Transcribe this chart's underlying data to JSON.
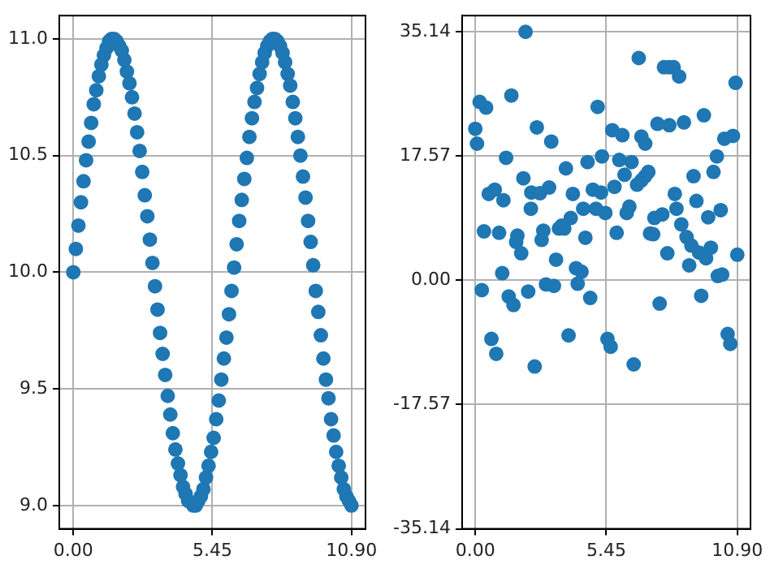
{
  "chart_data": [
    {
      "type": "scatter",
      "marker": "circle",
      "grid": true,
      "xlim": [
        -0.55,
        11.45
      ],
      "ylim": [
        8.9,
        11.1
      ],
      "xticks": [
        {
          "value": 0,
          "label": "0.00"
        },
        {
          "value": 5.45,
          "label": "5.45"
        },
        {
          "value": 10.9,
          "label": "10.90"
        }
      ],
      "yticks": [
        {
          "value": 9,
          "label": "9.0"
        },
        {
          "value": 9.5,
          "label": "9.5"
        },
        {
          "value": 10,
          "label": "10.0"
        },
        {
          "value": 10.5,
          "label": "10.5"
        },
        {
          "value": 11,
          "label": "11.0"
        }
      ],
      "series": [
        {
          "color": "#1f77b4",
          "x": [
            0,
            0.1,
            0.2,
            0.3,
            0.4,
            0.5,
            0.6,
            0.7,
            0.8,
            0.9,
            1,
            1.1,
            1.2,
            1.3,
            1.4,
            1.5,
            1.6,
            1.7,
            1.8,
            1.9,
            2,
            2.1,
            2.2,
            2.3,
            2.4,
            2.5,
            2.6,
            2.7,
            2.8,
            2.9,
            3,
            3.1,
            3.2,
            3.3,
            3.4,
            3.5,
            3.6,
            3.7,
            3.8,
            3.9,
            4,
            4.1,
            4.2,
            4.3,
            4.4,
            4.5,
            4.7,
            4.8,
            4.9,
            5,
            5.1,
            5.2,
            5.3,
            5.4,
            5.5,
            5.6,
            5.7,
            5.8,
            5.9,
            6,
            6.1,
            6.2,
            6.3,
            6.4,
            6.5,
            6.6,
            6.7,
            6.8,
            6.9,
            7,
            7.1,
            7.2,
            7.3,
            7.4,
            7.5,
            7.6,
            7.7,
            7.8,
            7.9,
            8,
            8.1,
            8.2,
            8.3,
            8.4,
            8.5,
            8.6,
            8.7,
            8.8,
            8.9,
            9,
            9.1,
            9.2,
            9.3,
            9.4,
            9.5,
            9.6,
            9.7,
            9.8,
            9.9,
            10,
            10.1,
            10.2,
            10.3,
            10.4,
            10.5,
            10.6,
            10.7,
            10.8,
            10.9
          ],
          "values": [
            10,
            10.1,
            10.2,
            10.3,
            10.39,
            10.48,
            10.56,
            10.64,
            10.72,
            10.78,
            10.84,
            10.89,
            10.93,
            10.96,
            10.99,
            11,
            11,
            10.99,
            10.97,
            10.95,
            10.91,
            10.86,
            10.81,
            10.75,
            10.68,
            10.6,
            10.52,
            10.43,
            10.33,
            10.24,
            10.14,
            10.04,
            9.94,
            9.84,
            9.74,
            9.65,
            9.56,
            9.47,
            9.39,
            9.31,
            9.24,
            9.18,
            9.13,
            9.08,
            9.05,
            9.02,
            9,
            9,
            9.02,
            9.04,
            9.07,
            9.12,
            9.17,
            9.23,
            9.29,
            9.37,
            9.45,
            9.54,
            9.63,
            9.72,
            9.82,
            9.92,
            10.02,
            10.12,
            10.22,
            10.31,
            10.4,
            10.49,
            10.58,
            10.66,
            10.73,
            10.79,
            10.85,
            10.9,
            10.94,
            10.97,
            10.99,
            11,
            11,
            10.99,
            10.97,
            10.94,
            10.9,
            10.85,
            10.8,
            10.73,
            10.66,
            10.58,
            10.5,
            10.41,
            10.32,
            10.22,
            10.13,
            10.03,
            9.92,
            9.83,
            9.73,
            9.63,
            9.54,
            9.46,
            9.37,
            9.3,
            9.23,
            9.17,
            9.12,
            9.07,
            9.04,
            9.02,
            9
          ]
        }
      ]
    },
    {
      "type": "scatter",
      "marker": "circle",
      "grid": true,
      "xlim": [
        -0.55,
        11.45
      ],
      "ylim": [
        -35.14,
        37.4
      ],
      "xticks": [
        {
          "value": 0,
          "label": "0.00"
        },
        {
          "value": 5.45,
          "label": "5.45"
        },
        {
          "value": 10.9,
          "label": "10.90"
        }
      ],
      "yticks": [
        {
          "value": -35.14,
          "label": "-35.14"
        },
        {
          "value": -17.57,
          "label": "-17.57"
        },
        {
          "value": 0,
          "label": "0.00"
        },
        {
          "value": 17.57,
          "label": "17.57"
        },
        {
          "value": 35.14,
          "label": "35.14"
        }
      ],
      "series": [
        {
          "color": "#1f77b4",
          "x": [
            2.09,
            6.8,
            7.85,
            8.07,
            8.25,
            8.48,
            10.83,
            0.18,
            0.45,
            1.5,
            5.09,
            0,
            0.07,
            2.56,
            3.16,
            5.7,
            6.12,
            6.91,
            7.07,
            7.58,
            8.07,
            8.68,
            9.51,
            10.36,
            10.72,
            1.28,
            2,
            3.77,
            4.67,
            5.27,
            5.99,
            6.5,
            0.56,
            0.81,
            1.17,
            2.33,
            2.69,
            3.07,
            4.06,
            4.89,
            5.23,
            5.79,
            6.21,
            6.73,
            6.91,
            7.07,
            7.2,
            8.3,
            9.08,
            9.91,
            10.05,
            2.31,
            4.49,
            5.02,
            5.41,
            6.3,
            6.41,
            8.37,
            9.2,
            3.97,
            3.48,
            3.59,
            3.7,
            2.83,
            2.76,
            0.36,
            0.99,
            1.75,
            1.7,
            1.91,
            4.58,
            5.88,
            7.27,
            7.4,
            7.45,
            7.78,
            8.57,
            8.79,
            8.99,
            9.31,
            9.6,
            9.69,
            9.8,
            10.21,
            10.9,
            7.99,
            8.9,
            3.36,
            1.12,
            4.19,
            4.42,
            10.09,
            10.27,
            0.27,
            1.39,
            1.59,
            2.2,
            2.94,
            3.27,
            4.26,
            4.78,
            0.67,
            0.87,
            2.47,
            3.88,
            5.5,
            5.63,
            6.59,
            7.67,
            9.4,
            10.5,
            10.61
          ],
          "values": [
            35.1,
            31.4,
            30.1,
            30.1,
            30.1,
            28.8,
            27.9,
            25.2,
            24.4,
            26.1,
            24.5,
            21.4,
            19.3,
            21.6,
            19.6,
            21.2,
            20.5,
            20.3,
            19.3,
            22.1,
            21.9,
            22.3,
            23.3,
            20,
            20.4,
            17.3,
            14.4,
            15.8,
            16.7,
            17.5,
            17,
            16.7,
            12.2,
            12.8,
            11.3,
            12.4,
            12.3,
            13.1,
            12.2,
            12.8,
            12.4,
            13.2,
            14.9,
            13.5,
            14.1,
            14.7,
            15.3,
            12.2,
            14.7,
            15.3,
            17.5,
            10.1,
            10.1,
            10.1,
            9.5,
            9.5,
            10.4,
            10.1,
            11.2,
            8.8,
            7.3,
            7.7,
            7.3,
            7,
            5.7,
            6.9,
            6.7,
            6.3,
            5.4,
            3.8,
            6,
            6.7,
            6.6,
            6.5,
            8.8,
            9.3,
            7.9,
            6.1,
            4.9,
            3.9,
            3.1,
            8.9,
            4.6,
            9.9,
            3.6,
            3.8,
            2.1,
            2.9,
            1,
            1.7,
            1.2,
            0.6,
            0.8,
            -1.4,
            -2.3,
            -3.5,
            -1.6,
            -0.6,
            -0.8,
            -0.5,
            -2.5,
            -8.3,
            -10.4,
            -12.2,
            -7.8,
            -8.3,
            -9.4,
            -11.9,
            -3.3,
            -2.2,
            -7.6,
            -9
          ]
        }
      ]
    }
  ]
}
